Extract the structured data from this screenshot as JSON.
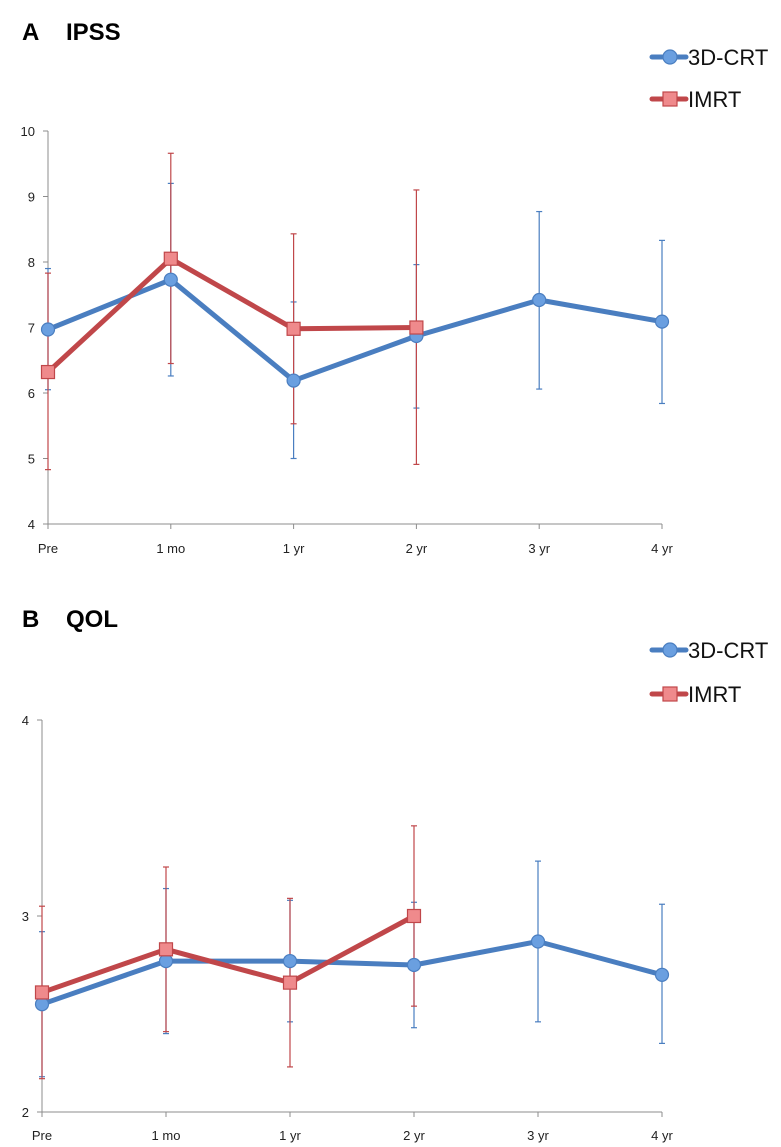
{
  "colors": {
    "series1": "#4a7ec0",
    "series2": "#c0474a",
    "series1_marker": "#6a9fe0",
    "series2_marker": "#ef8a8c"
  },
  "legend": [
    {
      "name": "3D-CRT",
      "marker": "circle"
    },
    {
      "name": "IMRT",
      "marker": "square"
    }
  ],
  "chart_data": [
    {
      "type": "line",
      "panel": "A",
      "title": "IPSS",
      "categories": [
        "Pre",
        "1 mo",
        "1 yr",
        "2 yr",
        "3 yr",
        "4 yr"
      ],
      "ylim": [
        4,
        10
      ],
      "yticks": [
        "4",
        "5",
        "6",
        "7",
        "8",
        "9",
        "10"
      ],
      "legend_position": "top-right",
      "series": [
        {
          "name": "3D-CRT",
          "values": [
            6.97,
            7.73,
            6.19,
            6.87,
            7.42,
            7.09
          ],
          "err_low": [
            6.05,
            6.26,
            5.0,
            5.77,
            6.06,
            5.84
          ],
          "err_high": [
            7.9,
            9.2,
            7.39,
            7.96,
            8.77,
            8.33
          ]
        },
        {
          "name": "IMRT",
          "values": [
            6.32,
            8.05,
            6.98,
            7.0,
            null,
            null
          ],
          "err_low": [
            4.83,
            6.45,
            5.53,
            4.91,
            null,
            null
          ],
          "err_high": [
            7.83,
            9.66,
            8.43,
            9.1,
            null,
            null
          ]
        }
      ]
    },
    {
      "type": "line",
      "panel": "B",
      "title": "QOL",
      "categories": [
        "Pre",
        "1 mo",
        "1 yr",
        "2 yr",
        "3 yr",
        "4 yr"
      ],
      "ylim": [
        2,
        4
      ],
      "yticks": [
        "2",
        "3",
        "4"
      ],
      "legend_position": "top-right",
      "series": [
        {
          "name": "3D-CRT",
          "values": [
            2.55,
            2.77,
            2.77,
            2.75,
            2.87,
            2.7
          ],
          "err_low": [
            2.18,
            2.4,
            2.46,
            2.43,
            2.46,
            2.35
          ],
          "err_high": [
            2.92,
            3.14,
            3.08,
            3.07,
            3.28,
            3.06
          ]
        },
        {
          "name": "IMRT",
          "values": [
            2.61,
            2.83,
            2.66,
            3.0,
            null,
            null
          ],
          "err_low": [
            2.17,
            2.41,
            2.23,
            2.54,
            null,
            null
          ],
          "err_high": [
            3.05,
            3.25,
            3.09,
            3.46,
            null,
            null
          ]
        }
      ]
    }
  ]
}
